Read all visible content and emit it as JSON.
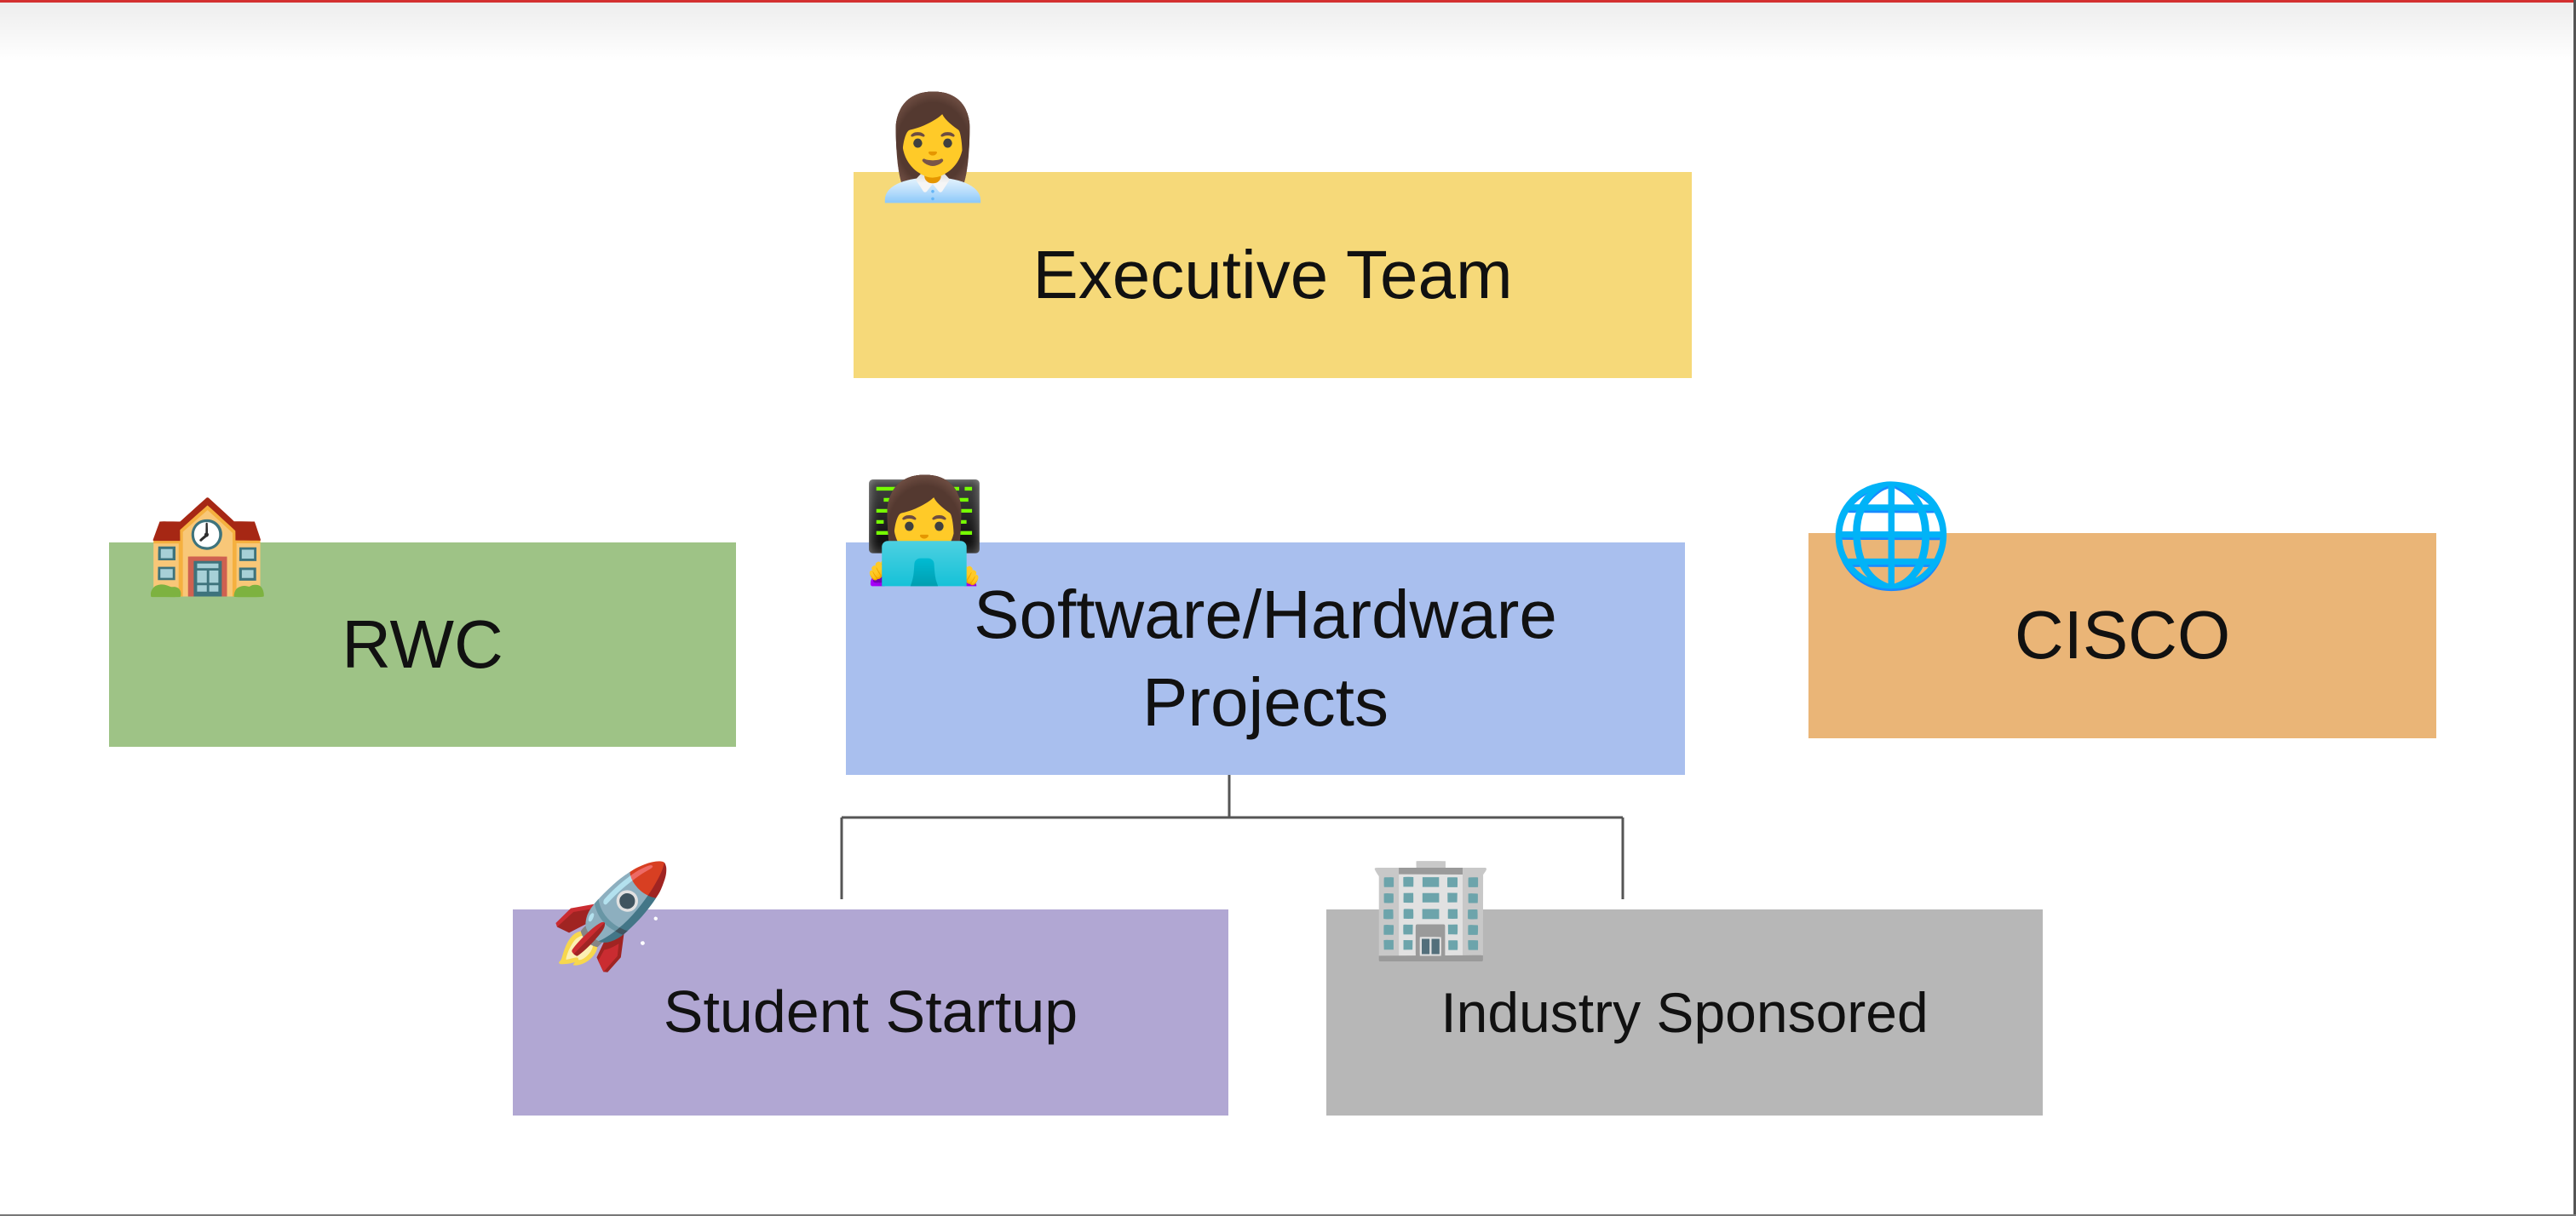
{
  "diagram": {
    "nodes": {
      "executive": {
        "label": "Executive Team",
        "icon": "office-worker-woman-icon",
        "glyph": "👩‍💼",
        "color": "#f6d979"
      },
      "rwc": {
        "label": "RWC",
        "icon": "school-building-icon",
        "glyph": "🏫",
        "color": "#9ec386"
      },
      "projects": {
        "label": "Software/Hardware Projects",
        "icon": "technologist-woman-icon",
        "glyph": "👩‍💻",
        "color": "#a9bfee"
      },
      "cisco": {
        "label": "CISCO",
        "icon": "globe-icon",
        "glyph": "🌐",
        "color": "#eab577"
      },
      "startup": {
        "label": "Student Startup",
        "icon": "rocket-icon",
        "glyph": "🚀",
        "color": "#b1a7d3"
      },
      "industry": {
        "label": "Industry Sponsored",
        "icon": "office-building-icon",
        "glyph": "🏢",
        "color": "#b7b7b7"
      }
    },
    "edges": [
      {
        "from": "projects",
        "to": "startup"
      },
      {
        "from": "projects",
        "to": "industry"
      }
    ],
    "connector_color": "#555555"
  }
}
